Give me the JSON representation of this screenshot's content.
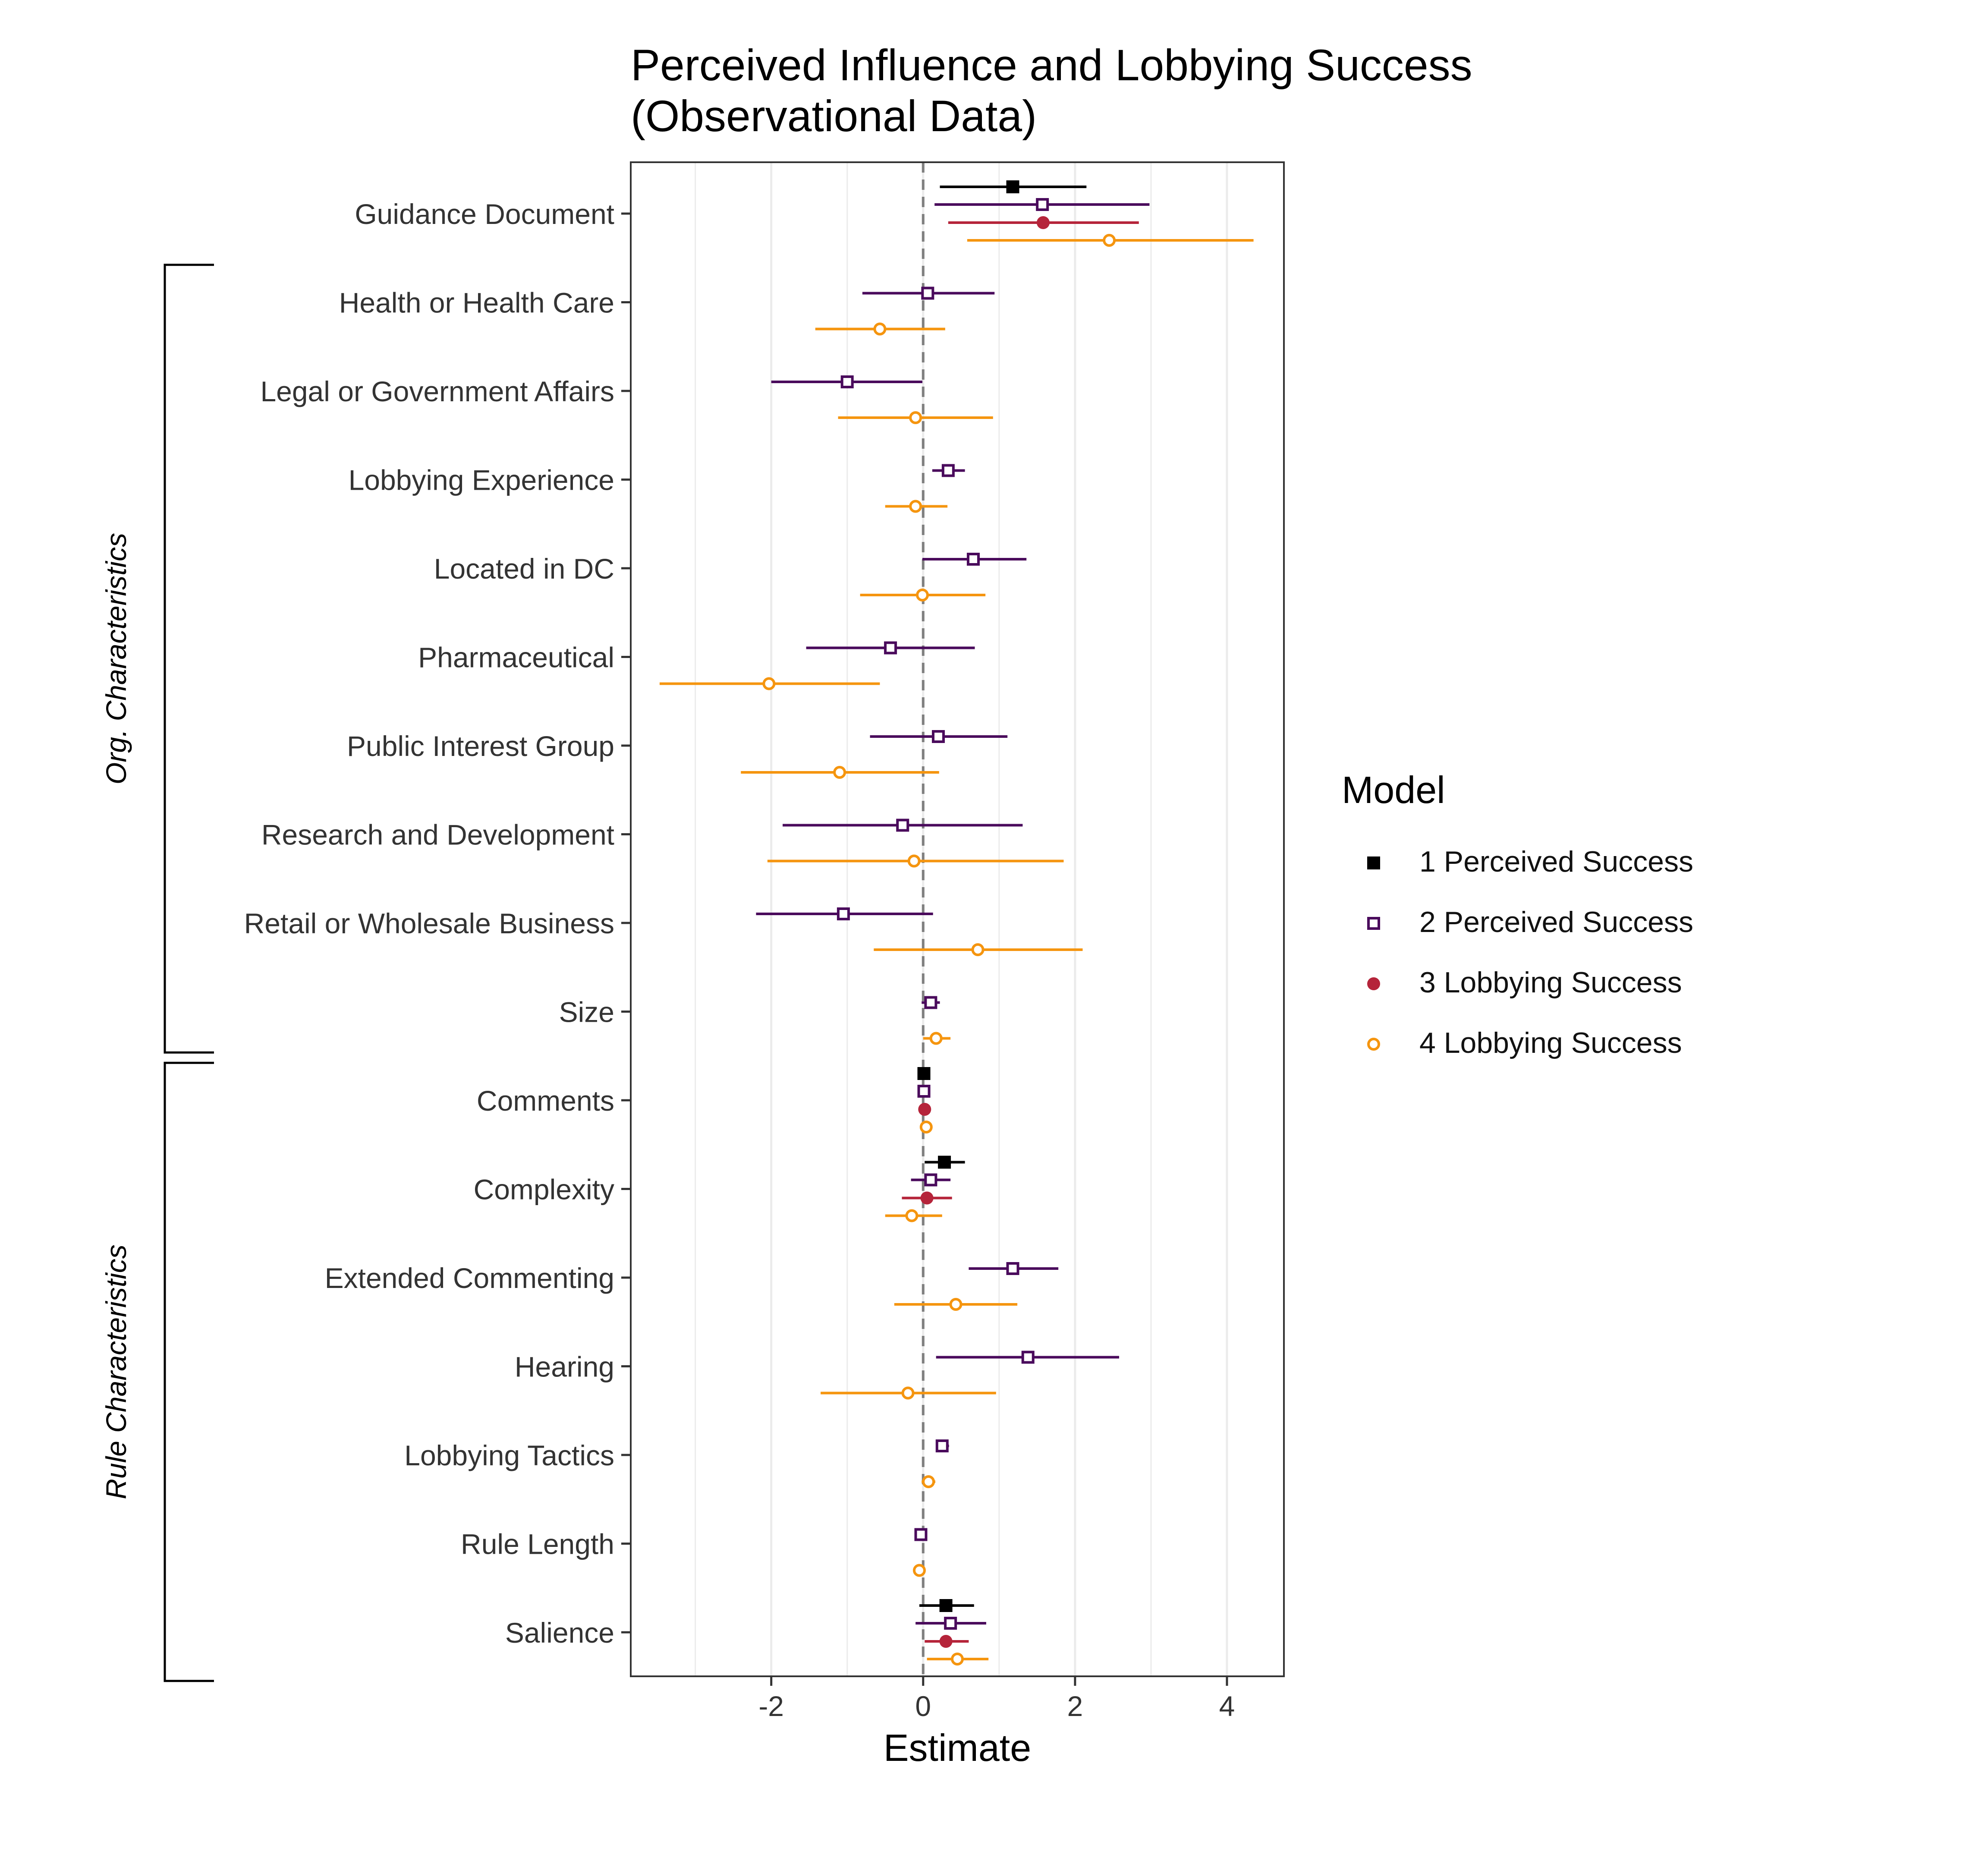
{
  "chart_data": {
    "type": "scatter",
    "title": "Perceived Influence and Lobbying Success\n(Observational Data)",
    "title_lines": [
      "Perceived Influence and Lobbying Success",
      "(Observational Data)"
    ],
    "xlabel": "Estimate",
    "ylabel": "",
    "xlim": [
      -3.85,
      4.75
    ],
    "x_ticks": [
      -2,
      0,
      2,
      4
    ],
    "x_tick_labels": [
      "-2",
      "0",
      "2",
      "4"
    ],
    "grid": "vertical",
    "reference_line": 0,
    "legend": {
      "title": "Model",
      "position": "right"
    },
    "categories": [
      "Guidance Document",
      "Health or Health Care",
      "Legal or Government Affairs",
      "Lobbying Experience",
      "Located in DC",
      "Pharmaceutical",
      "Public Interest Group",
      "Research and Development",
      "Retail or Wholesale Business",
      "Size",
      "Comments",
      "Complexity",
      "Extended Commenting",
      "Hearing",
      "Lobbying Tactics",
      "Rule Length",
      "Salience"
    ],
    "groups": [
      {
        "label": "Org. Characteristics",
        "categories": [
          "Health or Health Care",
          "Legal or Government Affairs",
          "Lobbying Experience",
          "Located in DC",
          "Pharmaceutical",
          "Public Interest Group",
          "Research and Development",
          "Retail or Wholesale Business",
          "Size"
        ]
      },
      {
        "label": "Rule Characteristics",
        "categories": [
          "Comments",
          "Complexity",
          "Extended Commenting",
          "Hearing",
          "Lobbying Tactics",
          "Rule Length",
          "Salience"
        ]
      }
    ],
    "series": [
      {
        "name": "1 Perceived Success",
        "color": "#000000",
        "marker": "filled-square",
        "points": [
          {
            "category": "Guidance Document",
            "estimate": 1.18,
            "low": 0.22,
            "high": 2.15
          },
          {
            "category": "Comments",
            "estimate": 0.01,
            "low": -0.02,
            "high": 0.04
          },
          {
            "category": "Complexity",
            "estimate": 0.28,
            "low": 0.02,
            "high": 0.55
          },
          {
            "category": "Salience",
            "estimate": 0.3,
            "low": -0.05,
            "high": 0.67
          }
        ]
      },
      {
        "name": "2 Perceived Success",
        "color": "#4a0a5c",
        "marker": "open-square",
        "points": [
          {
            "category": "Guidance Document",
            "estimate": 1.57,
            "low": 0.15,
            "high": 2.98
          },
          {
            "category": "Health or Health Care",
            "estimate": 0.06,
            "low": -0.8,
            "high": 0.94
          },
          {
            "category": "Legal or Government Affairs",
            "estimate": -1.0,
            "low": -2.0,
            "high": -0.01
          },
          {
            "category": "Lobbying Experience",
            "estimate": 0.33,
            "low": 0.12,
            "high": 0.55
          },
          {
            "category": "Located in DC",
            "estimate": 0.66,
            "low": -0.01,
            "high": 1.36
          },
          {
            "category": "Pharmaceutical",
            "estimate": -0.43,
            "low": -1.54,
            "high": 0.68
          },
          {
            "category": "Public Interest Group",
            "estimate": 0.2,
            "low": -0.7,
            "high": 1.11
          },
          {
            "category": "Research and Development",
            "estimate": -0.27,
            "low": -1.85,
            "high": 1.31
          },
          {
            "category": "Retail or Wholesale Business",
            "estimate": -1.05,
            "low": -2.2,
            "high": 0.13
          },
          {
            "category": "Size",
            "estimate": 0.1,
            "low": -0.02,
            "high": 0.22
          },
          {
            "category": "Comments",
            "estimate": 0.01,
            "low": -0.02,
            "high": 0.04
          },
          {
            "category": "Complexity",
            "estimate": 0.1,
            "low": -0.16,
            "high": 0.36
          },
          {
            "category": "Extended Commenting",
            "estimate": 1.18,
            "low": 0.6,
            "high": 1.78
          },
          {
            "category": "Hearing",
            "estimate": 1.38,
            "low": 0.17,
            "high": 2.58
          },
          {
            "category": "Lobbying Tactics",
            "estimate": 0.25,
            "low": 0.17,
            "high": 0.34
          },
          {
            "category": "Rule Length",
            "estimate": -0.03,
            "low": -0.1,
            "high": 0.04
          },
          {
            "category": "Salience",
            "estimate": 0.36,
            "low": -0.1,
            "high": 0.83
          }
        ]
      },
      {
        "name": "3 Lobbying Success",
        "color": "#b5243a",
        "marker": "filled-circle",
        "points": [
          {
            "category": "Guidance Document",
            "estimate": 1.58,
            "low": 0.33,
            "high": 2.84
          },
          {
            "category": "Comments",
            "estimate": 0.02,
            "low": -0.01,
            "high": 0.05
          },
          {
            "category": "Complexity",
            "estimate": 0.05,
            "low": -0.28,
            "high": 0.38
          },
          {
            "category": "Salience",
            "estimate": 0.3,
            "low": 0.02,
            "high": 0.6
          }
        ]
      },
      {
        "name": "4 Lobbying Success",
        "color": "#f5950f",
        "marker": "open-circle",
        "points": [
          {
            "category": "Guidance Document",
            "estimate": 2.45,
            "low": 0.58,
            "high": 4.35
          },
          {
            "category": "Health or Health Care",
            "estimate": -0.57,
            "low": -1.42,
            "high": 0.29
          },
          {
            "category": "Legal or Government Affairs",
            "estimate": -0.1,
            "low": -1.12,
            "high": 0.92
          },
          {
            "category": "Lobbying Experience",
            "estimate": -0.1,
            "low": -0.5,
            "high": 0.32
          },
          {
            "category": "Located in DC",
            "estimate": -0.01,
            "low": -0.83,
            "high": 0.82
          },
          {
            "category": "Pharmaceutical",
            "estimate": -2.03,
            "low": -3.47,
            "high": -0.57
          },
          {
            "category": "Public Interest Group",
            "estimate": -1.1,
            "low": -2.4,
            "high": 0.21
          },
          {
            "category": "Research and Development",
            "estimate": -0.12,
            "low": -2.05,
            "high": 1.85
          },
          {
            "category": "Retail or Wholesale Business",
            "estimate": 0.72,
            "low": -0.65,
            "high": 2.1
          },
          {
            "category": "Size",
            "estimate": 0.17,
            "low": 0.0,
            "high": 0.36
          },
          {
            "category": "Comments",
            "estimate": 0.04,
            "low": 0.0,
            "high": 0.08
          },
          {
            "category": "Complexity",
            "estimate": -0.15,
            "low": -0.5,
            "high": 0.25
          },
          {
            "category": "Extended Commenting",
            "estimate": 0.43,
            "low": -0.38,
            "high": 1.24
          },
          {
            "category": "Hearing",
            "estimate": -0.2,
            "low": -1.35,
            "high": 0.96
          },
          {
            "category": "Lobbying Tactics",
            "estimate": 0.07,
            "low": -0.02,
            "high": 0.16
          },
          {
            "category": "Rule Length",
            "estimate": -0.05,
            "low": -0.12,
            "high": 0.02
          },
          {
            "category": "Salience",
            "estimate": 0.45,
            "low": 0.05,
            "high": 0.86
          }
        ]
      }
    ]
  }
}
